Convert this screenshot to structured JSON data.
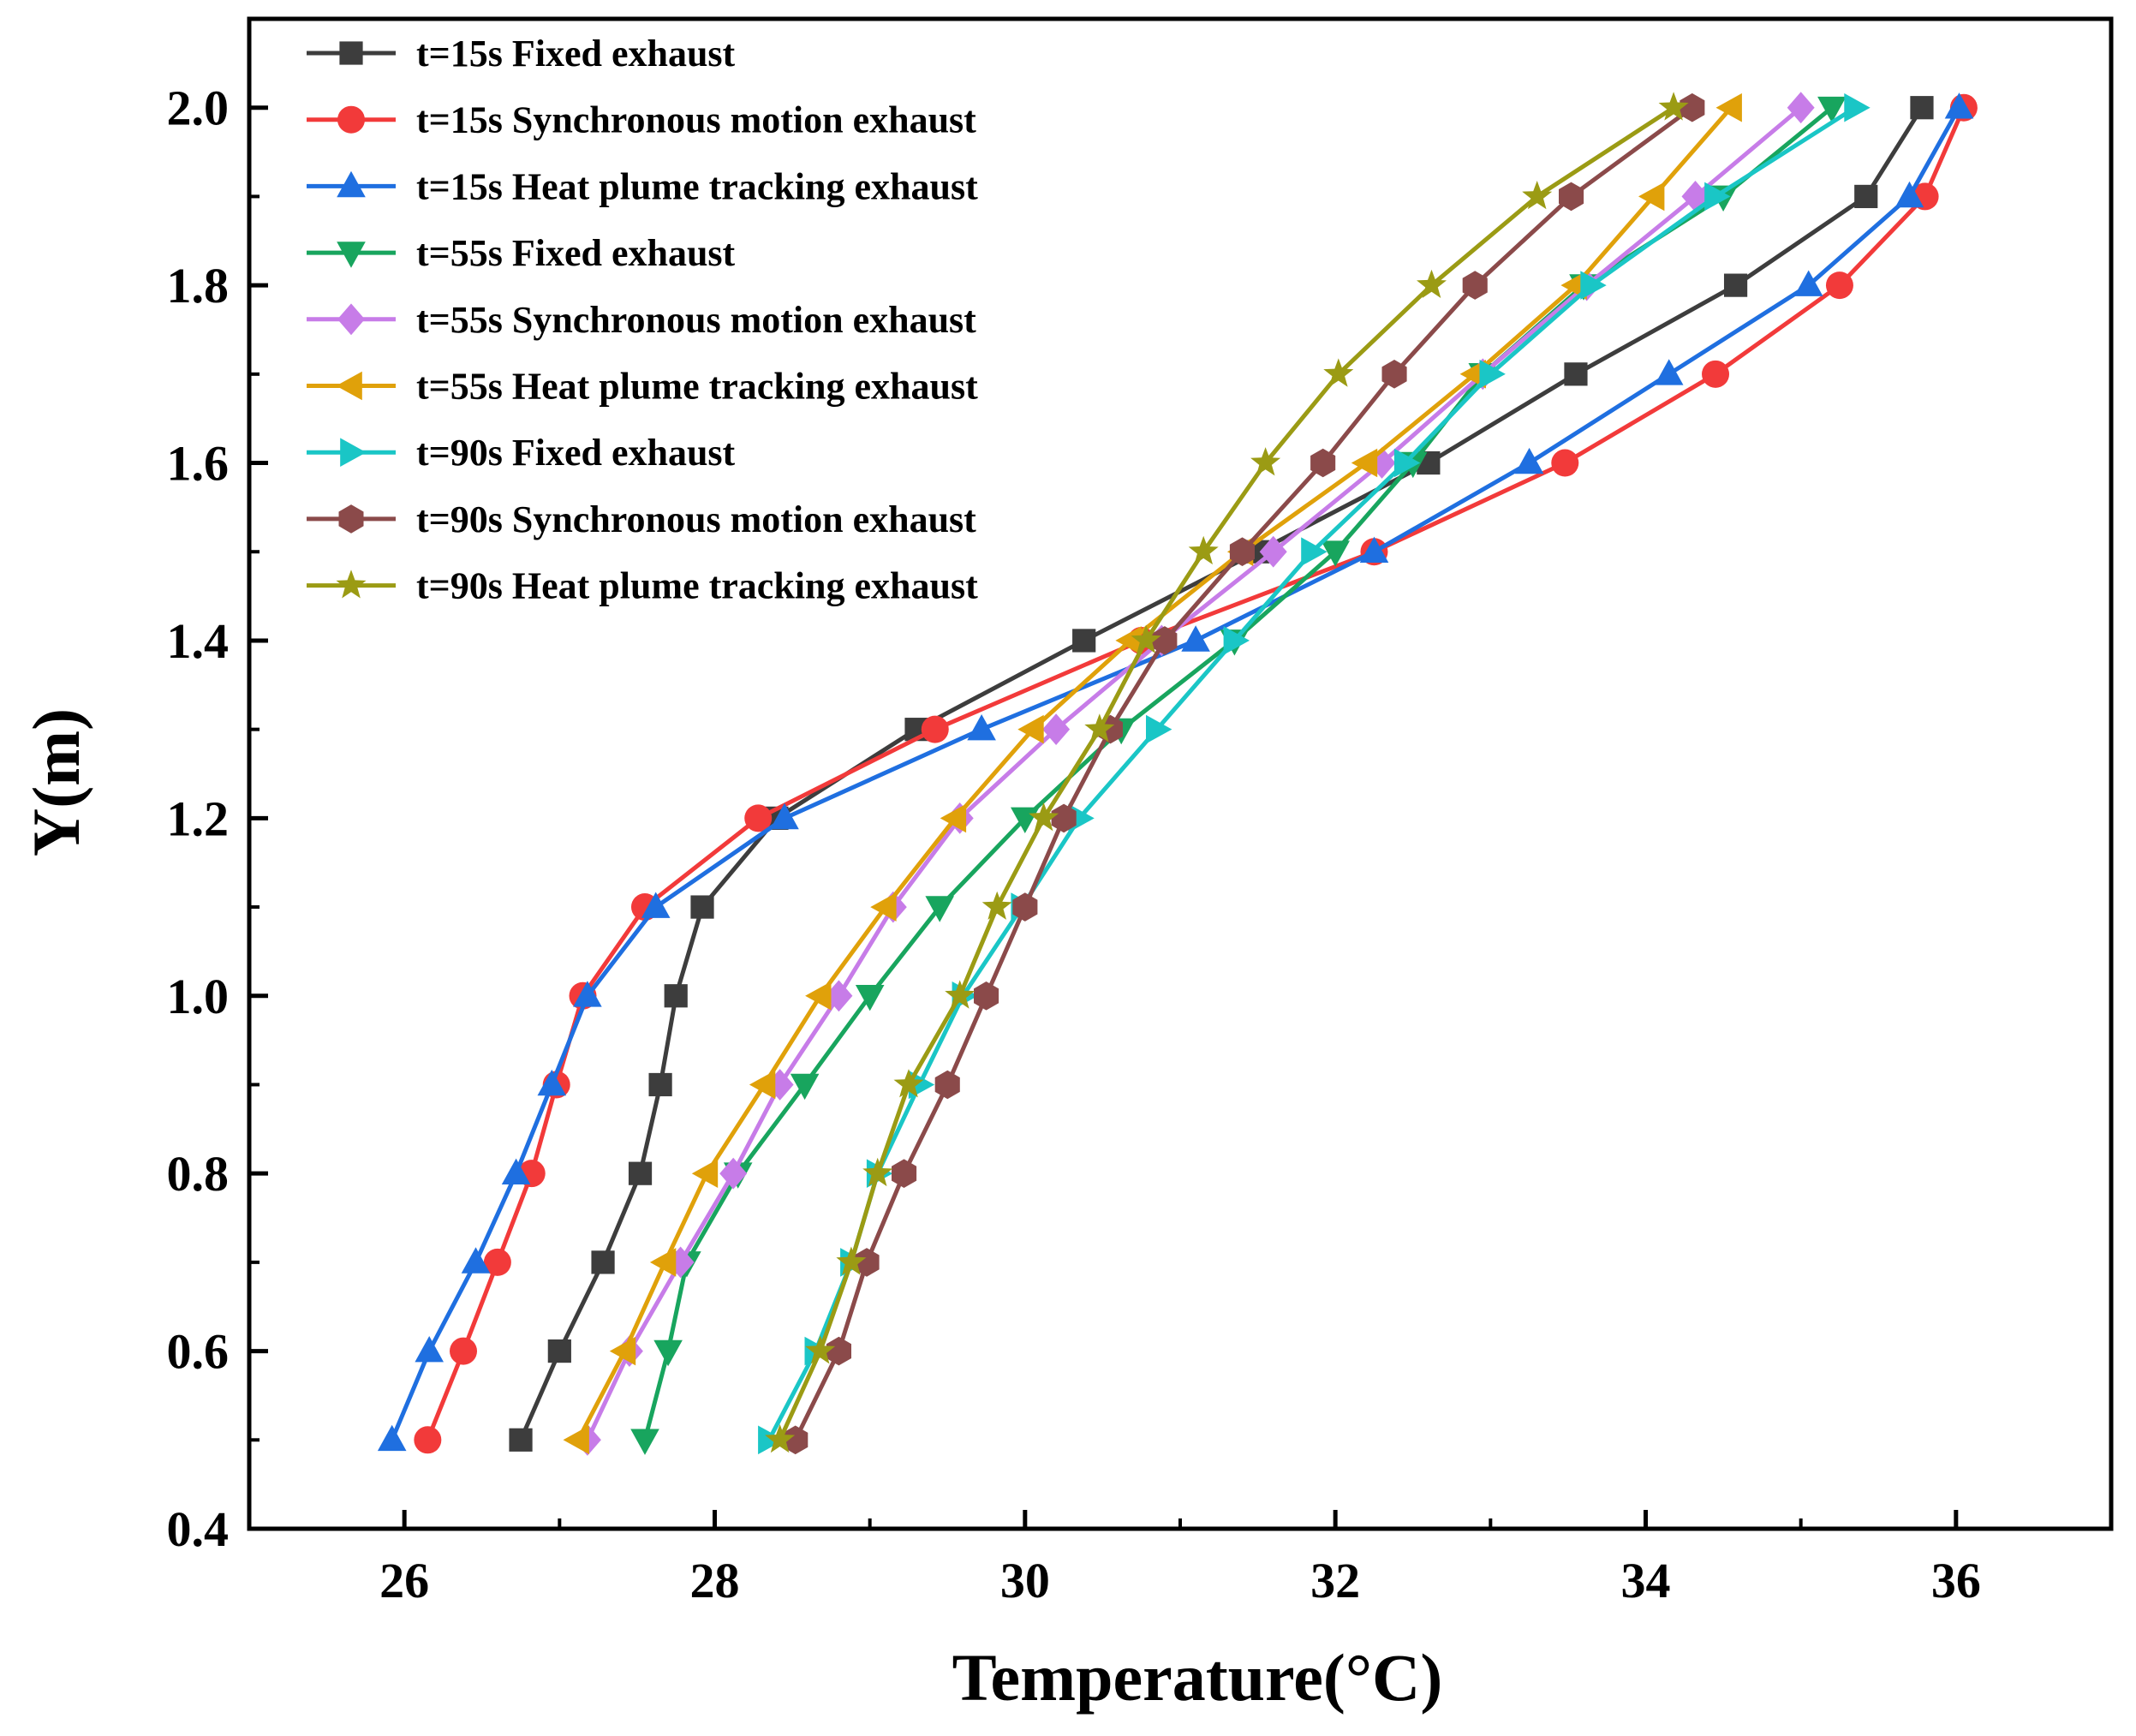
{
  "chart_data": {
    "type": "line",
    "title": "",
    "xlabel": "Temperature(°C)",
    "ylabel": "Y(m)",
    "xlim": [
      25,
      37
    ],
    "ylim": [
      0.4,
      2.1
    ],
    "xticks": [
      26,
      28,
      30,
      32,
      34,
      36
    ],
    "yticks": [
      0.4,
      0.6,
      0.8,
      1.0,
      1.2,
      1.4,
      1.6,
      1.8,
      2.0
    ],
    "xtick_labels": [
      "26",
      "28",
      "30",
      "32",
      "34",
      "36"
    ],
    "ytick_labels": [
      "0.4",
      "0.6",
      "0.8",
      "1.0",
      "1.2",
      "1.4",
      "1.6",
      "1.8",
      "2.0"
    ],
    "legend_position": "top-left",
    "grid": false,
    "y": [
      0.5,
      0.6,
      0.7,
      0.8,
      0.9,
      1.0,
      1.1,
      1.2,
      1.3,
      1.4,
      1.5,
      1.6,
      1.7,
      1.8,
      1.9,
      2.0
    ],
    "series": [
      {
        "name": "t=15s Fixed exhaust",
        "color": "#3d3d3d",
        "marker": "square",
        "x": [
          26.75,
          27.0,
          27.28,
          27.52,
          27.65,
          27.75,
          27.92,
          28.4,
          29.3,
          30.38,
          31.5,
          32.6,
          33.55,
          34.58,
          35.42,
          35.78
        ]
      },
      {
        "name": "t=15s Synchronous motion exhaust",
        "color": "#f23a3a",
        "marker": "circle",
        "x": [
          26.15,
          26.38,
          26.6,
          26.82,
          26.98,
          27.15,
          27.55,
          28.28,
          29.42,
          30.75,
          32.25,
          33.48,
          34.45,
          35.25,
          35.8,
          36.05
        ]
      },
      {
        "name": "t=15s Heat plume tracking exhaust",
        "color": "#1f6fe0",
        "marker": "triangle-up",
        "x": [
          25.92,
          26.16,
          26.46,
          26.72,
          26.95,
          27.18,
          27.62,
          28.45,
          29.72,
          31.1,
          32.25,
          33.25,
          34.15,
          35.05,
          35.7,
          36.02
        ]
      },
      {
        "name": "t=55s Fixed exhaust",
        "color": "#18a55e",
        "marker": "triangle-down",
        "x": [
          27.55,
          27.7,
          27.82,
          28.15,
          28.58,
          29.0,
          29.45,
          30.0,
          30.62,
          31.35,
          32.0,
          32.5,
          32.95,
          33.6,
          34.5,
          35.2
        ]
      },
      {
        "name": "t=55s Synchronous motion exhaust",
        "color": "#c77ce8",
        "marker": "diamond",
        "x": [
          27.18,
          27.45,
          27.78,
          28.12,
          28.42,
          28.8,
          29.15,
          29.58,
          30.2,
          30.88,
          31.6,
          32.3,
          32.95,
          33.62,
          34.32,
          35.0
        ]
      },
      {
        "name": "t=55s Heat plume tracking exhaust",
        "color": "#e0a10a",
        "marker": "triangle-left",
        "x": [
          27.12,
          27.42,
          27.68,
          27.95,
          28.32,
          28.68,
          29.1,
          29.55,
          30.05,
          30.68,
          31.4,
          32.2,
          32.9,
          33.55,
          34.05,
          34.55
        ]
      },
      {
        "name": "t=90s Fixed exhaust",
        "color": "#1ac6c6",
        "marker": "triangle-right",
        "x": [
          28.35,
          28.65,
          28.88,
          29.05,
          29.32,
          29.6,
          29.98,
          30.35,
          30.85,
          31.35,
          31.85,
          32.45,
          33.0,
          33.65,
          34.45,
          35.35
        ]
      },
      {
        "name": "t=90s Synchronous motion exhaust",
        "color": "#8b4a4a",
        "marker": "hexagon",
        "x": [
          28.52,
          28.8,
          28.98,
          29.22,
          29.5,
          29.75,
          30.0,
          30.25,
          30.55,
          30.9,
          31.4,
          31.92,
          32.38,
          32.9,
          33.52,
          34.3
        ]
      },
      {
        "name": "t=90s Heat plume tracking exhaust",
        "color": "#9b9b14",
        "marker": "star",
        "x": [
          28.42,
          28.68,
          28.88,
          29.05,
          29.25,
          29.58,
          29.82,
          30.12,
          30.48,
          30.78,
          31.15,
          31.55,
          32.02,
          32.62,
          33.3,
          34.18
        ]
      }
    ]
  }
}
